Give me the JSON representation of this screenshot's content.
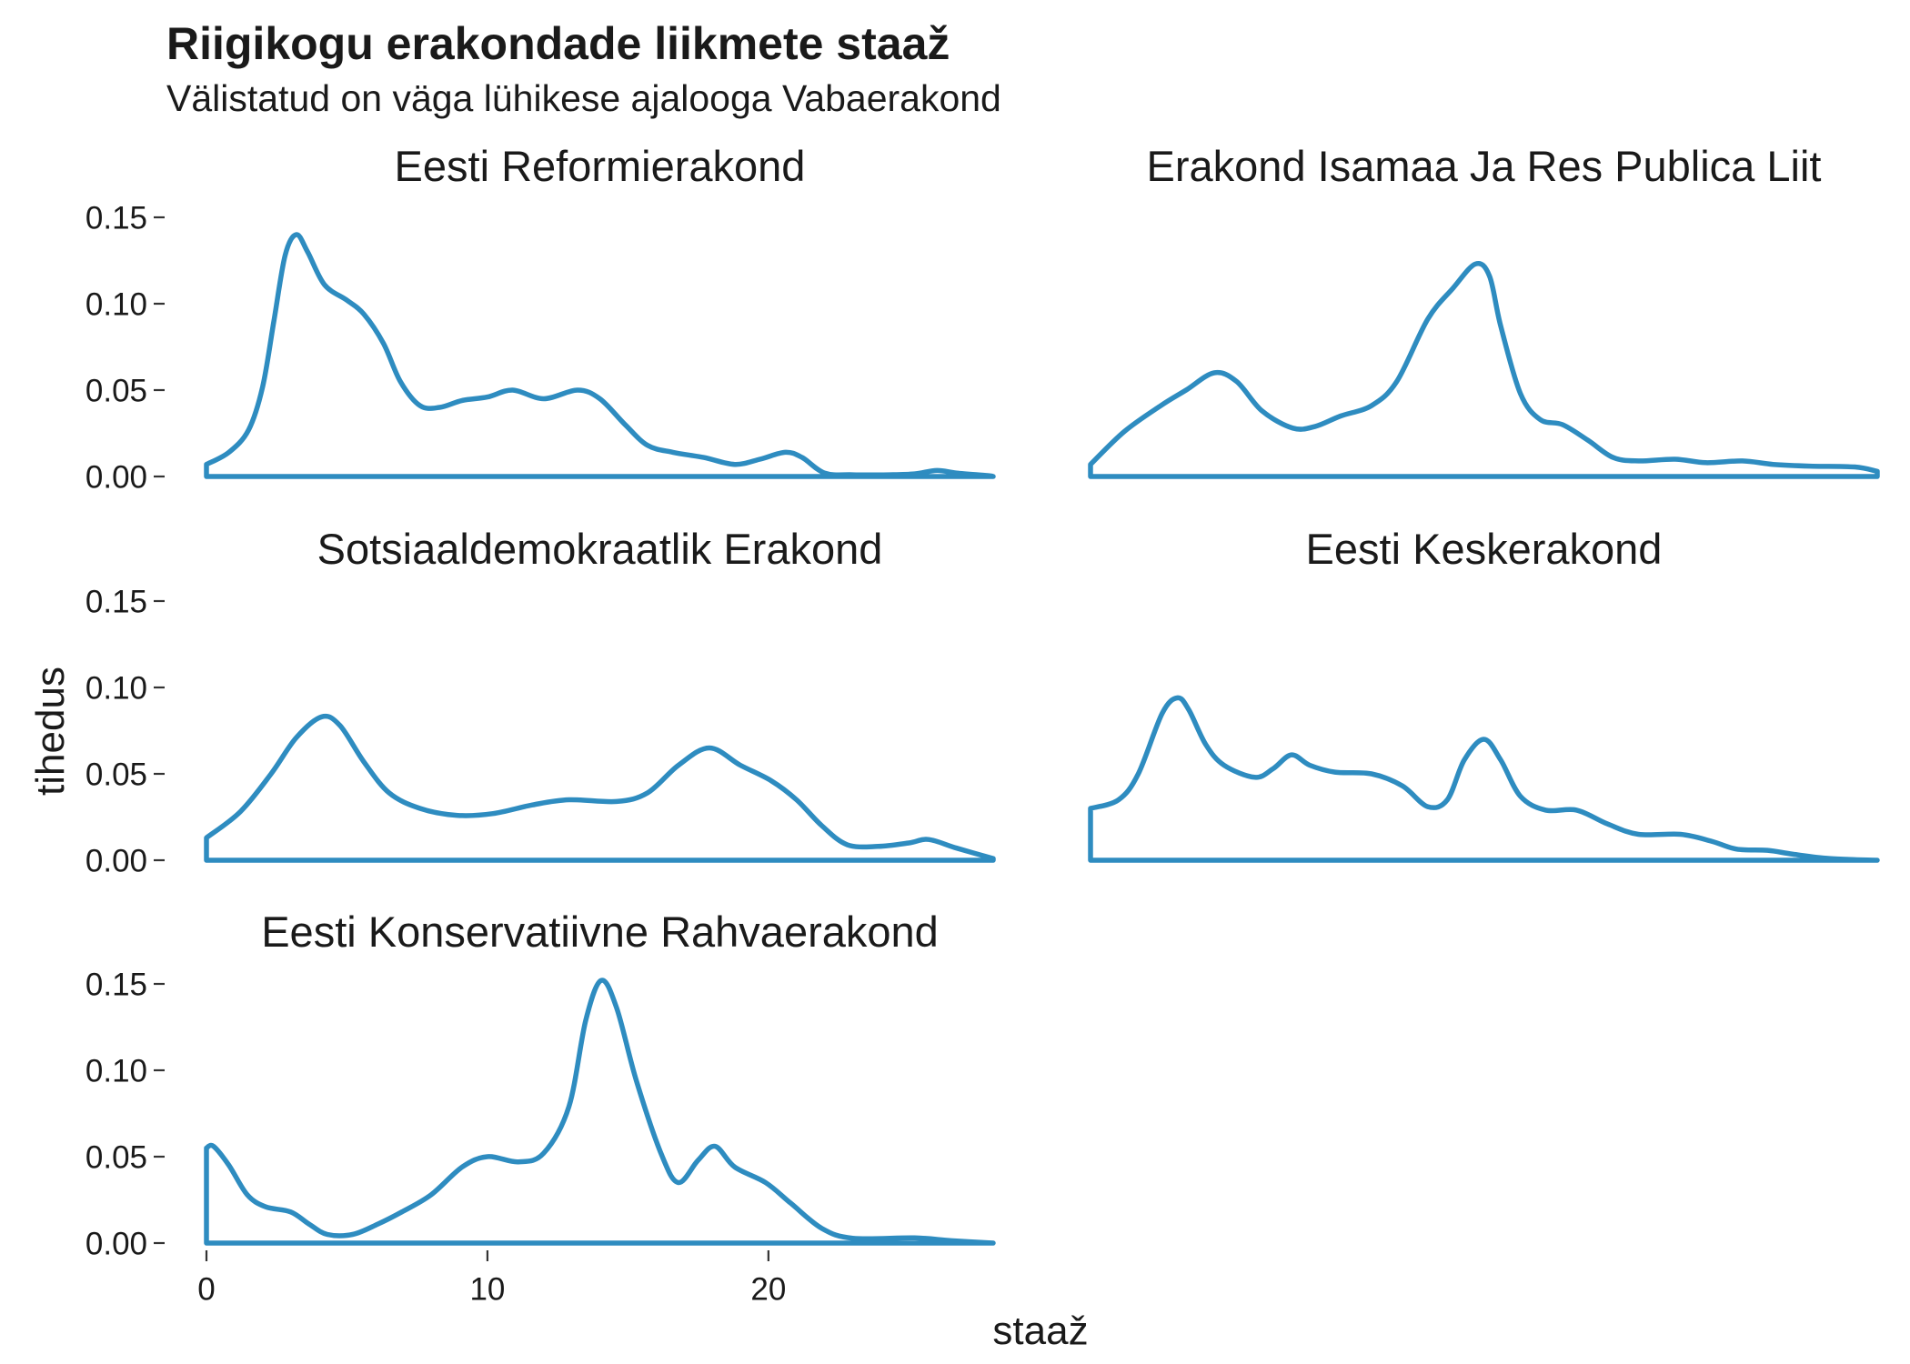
{
  "chart_data": {
    "type": "line",
    "title": "Riigikogu erakondade liikmete staaž",
    "subtitle": "Välistatud on väga lühikese ajalooga Vabaerakond",
    "xlabel": "staaž",
    "ylabel": "tihedus",
    "xlim": [
      0,
      28
    ],
    "ylim": [
      0,
      0.15
    ],
    "x_ticks": [
      0,
      10,
      20
    ],
    "x_tick_labels": [
      "0",
      "10",
      "20"
    ],
    "y_ticks": [
      0,
      0.05,
      0.1,
      0.15
    ],
    "y_tick_labels": [
      "0.00",
      "0.05",
      "0.10",
      "0.15"
    ],
    "grid": false,
    "legend": "none",
    "line_color": "#2E8CC0",
    "panels": [
      {
        "name": "Eesti Reformierakond",
        "points": [
          [
            0,
            0.007
          ],
          [
            0.8,
            0.014
          ],
          [
            1.5,
            0.027
          ],
          [
            2.0,
            0.052
          ],
          [
            2.4,
            0.09
          ],
          [
            2.8,
            0.128
          ],
          [
            3.2,
            0.14
          ],
          [
            3.6,
            0.13
          ],
          [
            4.2,
            0.111
          ],
          [
            5.0,
            0.102
          ],
          [
            5.6,
            0.094
          ],
          [
            6.3,
            0.077
          ],
          [
            6.9,
            0.055
          ],
          [
            7.6,
            0.041
          ],
          [
            8.3,
            0.04
          ],
          [
            9.1,
            0.044
          ],
          [
            10.0,
            0.046
          ],
          [
            10.9,
            0.05
          ],
          [
            12.0,
            0.045
          ],
          [
            13.2,
            0.05
          ],
          [
            14.0,
            0.045
          ],
          [
            14.9,
            0.03
          ],
          [
            15.7,
            0.018
          ],
          [
            16.6,
            0.014
          ],
          [
            17.7,
            0.011
          ],
          [
            18.8,
            0.007
          ],
          [
            19.7,
            0.01
          ],
          [
            20.6,
            0.014
          ],
          [
            21.2,
            0.011
          ],
          [
            22.0,
            0.002
          ],
          [
            23.0,
            0.001
          ],
          [
            24.3,
            0.001
          ],
          [
            25.2,
            0.0015
          ],
          [
            26.0,
            0.0035
          ],
          [
            26.7,
            0.002
          ],
          [
            27.8,
            0.0005
          ],
          [
            28,
            0.0
          ]
        ]
      },
      {
        "name": "Erakond Isamaa Ja Res Publica Liit",
        "points": [
          [
            0,
            0.007
          ],
          [
            1.2,
            0.026
          ],
          [
            2.5,
            0.041
          ],
          [
            3.4,
            0.05
          ],
          [
            4.4,
            0.06
          ],
          [
            5.2,
            0.055
          ],
          [
            6.1,
            0.038
          ],
          [
            7.2,
            0.028
          ],
          [
            8.0,
            0.029
          ],
          [
            8.9,
            0.035
          ],
          [
            10.0,
            0.041
          ],
          [
            10.9,
            0.055
          ],
          [
            12.0,
            0.091
          ],
          [
            12.9,
            0.109
          ],
          [
            13.7,
            0.123
          ],
          [
            14.2,
            0.116
          ],
          [
            14.6,
            0.087
          ],
          [
            15.3,
            0.048
          ],
          [
            16.0,
            0.033
          ],
          [
            16.8,
            0.03
          ],
          [
            17.7,
            0.021
          ],
          [
            18.6,
            0.011
          ],
          [
            19.5,
            0.009
          ],
          [
            20.8,
            0.01
          ],
          [
            21.9,
            0.008
          ],
          [
            23.2,
            0.009
          ],
          [
            24.3,
            0.007
          ],
          [
            25.6,
            0.006
          ],
          [
            27.2,
            0.0055
          ],
          [
            28,
            0.003
          ]
        ]
      },
      {
        "name": "Sotsiaaldemokraatlik Erakond",
        "points": [
          [
            0,
            0.013
          ],
          [
            1.2,
            0.028
          ],
          [
            2.3,
            0.05
          ],
          [
            3.2,
            0.071
          ],
          [
            4.1,
            0.083
          ],
          [
            4.75,
            0.078
          ],
          [
            5.6,
            0.057
          ],
          [
            6.5,
            0.039
          ],
          [
            7.6,
            0.03
          ],
          [
            8.9,
            0.026
          ],
          [
            10.2,
            0.027
          ],
          [
            11.6,
            0.032
          ],
          [
            12.9,
            0.035
          ],
          [
            14.6,
            0.034
          ],
          [
            15.7,
            0.039
          ],
          [
            16.8,
            0.055
          ],
          [
            17.9,
            0.065
          ],
          [
            19.0,
            0.055
          ],
          [
            20.1,
            0.046
          ],
          [
            21.0,
            0.035
          ],
          [
            21.9,
            0.02
          ],
          [
            22.8,
            0.009
          ],
          [
            23.9,
            0.008
          ],
          [
            25.0,
            0.01
          ],
          [
            25.7,
            0.012
          ],
          [
            26.7,
            0.007
          ],
          [
            28,
            0.001
          ]
        ]
      },
      {
        "name": "Eesti Keskerakond",
        "points": [
          [
            0,
            0.03
          ],
          [
            1.0,
            0.035
          ],
          [
            1.7,
            0.05
          ],
          [
            2.55,
            0.085
          ],
          [
            3.1,
            0.094
          ],
          [
            3.5,
            0.087
          ],
          [
            4.1,
            0.067
          ],
          [
            4.75,
            0.055
          ],
          [
            5.85,
            0.048
          ],
          [
            6.5,
            0.053
          ],
          [
            7.15,
            0.061
          ],
          [
            7.8,
            0.055
          ],
          [
            8.7,
            0.051
          ],
          [
            10.0,
            0.05
          ],
          [
            11.1,
            0.043
          ],
          [
            12.0,
            0.031
          ],
          [
            12.7,
            0.035
          ],
          [
            13.3,
            0.058
          ],
          [
            14.0,
            0.07
          ],
          [
            14.6,
            0.058
          ],
          [
            15.3,
            0.037
          ],
          [
            16.2,
            0.029
          ],
          [
            17.3,
            0.029
          ],
          [
            18.4,
            0.021
          ],
          [
            19.5,
            0.015
          ],
          [
            21.0,
            0.015
          ],
          [
            22.1,
            0.011
          ],
          [
            23.0,
            0.0064
          ],
          [
            24.1,
            0.0057
          ],
          [
            25.0,
            0.0035
          ],
          [
            26.3,
            0.001
          ],
          [
            28,
            0.0
          ]
        ]
      },
      {
        "name": "Eesti Konservatiivne Rahvaerakond",
        "points": [
          [
            0,
            0.055
          ],
          [
            0.25,
            0.056
          ],
          [
            0.8,
            0.045
          ],
          [
            1.45,
            0.028
          ],
          [
            2.1,
            0.021
          ],
          [
            3.0,
            0.018
          ],
          [
            3.65,
            0.011
          ],
          [
            4.3,
            0.005
          ],
          [
            5.2,
            0.005
          ],
          [
            6.1,
            0.011
          ],
          [
            6.95,
            0.018
          ],
          [
            8.0,
            0.028
          ],
          [
            9.1,
            0.044
          ],
          [
            10.0,
            0.05
          ],
          [
            11.1,
            0.047
          ],
          [
            12.0,
            0.052
          ],
          [
            12.9,
            0.079
          ],
          [
            13.5,
            0.129
          ],
          [
            14.05,
            0.152
          ],
          [
            14.6,
            0.136
          ],
          [
            15.3,
            0.094
          ],
          [
            16.2,
            0.051
          ],
          [
            16.8,
            0.035
          ],
          [
            17.5,
            0.048
          ],
          [
            18.1,
            0.056
          ],
          [
            18.8,
            0.044
          ],
          [
            19.9,
            0.035
          ],
          [
            20.8,
            0.023
          ],
          [
            21.9,
            0.0085
          ],
          [
            23.0,
            0.0028
          ],
          [
            25.2,
            0.003
          ],
          [
            26.5,
            0.0014
          ],
          [
            28,
            0.0
          ]
        ]
      }
    ]
  }
}
